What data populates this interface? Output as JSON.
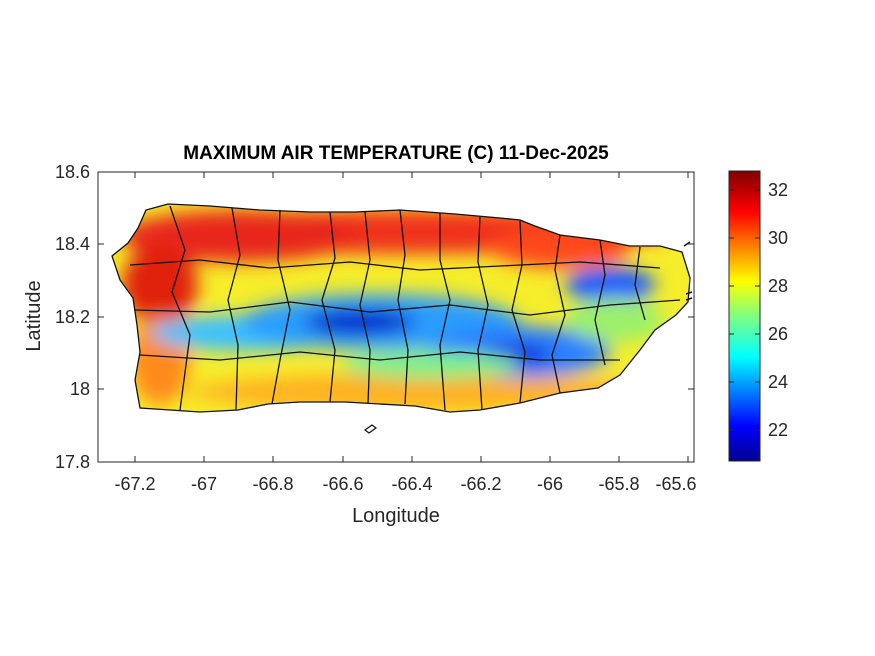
{
  "title": "MAXIMUM AIR TEMPERATURE (C) 11-Dec-2025",
  "xlabel": "Longitude",
  "ylabel": "Latitude",
  "x_ticks": [
    "-67.2",
    "-67",
    "-66.8",
    "-66.6",
    "-66.4",
    "-66.2",
    "-66",
    "-65.8",
    "-65.6"
  ],
  "y_ticks": [
    "18.6",
    "18.4",
    "18.2",
    "18",
    "17.8"
  ],
  "colorbar_ticks": [
    "32",
    "30",
    "28",
    "26",
    "24",
    "22"
  ],
  "chart_data": {
    "type": "heatmap",
    "title": "MAXIMUM AIR TEMPERATURE (C) 11-Dec-2025",
    "xlabel": "Longitude",
    "ylabel": "Latitude",
    "xlim": [
      -67.3,
      -65.58
    ],
    "ylim": [
      17.8,
      18.6
    ],
    "colorbar": {
      "min": 20.7,
      "max": 33.0,
      "ticks": [
        32,
        30,
        28,
        26,
        24,
        22
      ],
      "colormap": "jet"
    },
    "value_regions": [
      {
        "region": "north coast",
        "value_c": 31
      },
      {
        "region": "west interior",
        "value_c": 31
      },
      {
        "region": "central mountains",
        "value_c": 22
      },
      {
        "region": "southeast interior",
        "value_c": 23
      },
      {
        "region": "northeast",
        "value_c": 23
      },
      {
        "region": "south coast",
        "value_c": 28
      }
    ]
  }
}
